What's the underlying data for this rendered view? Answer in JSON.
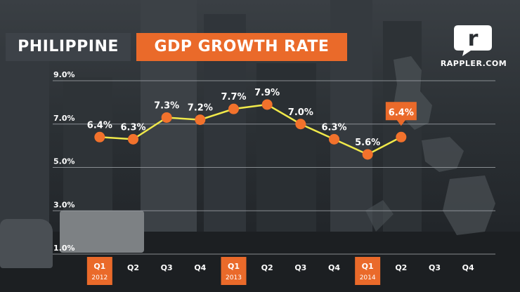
{
  "header": {
    "title_left": "PHILIPPINE",
    "title_right": "GDP GROWTH RATE",
    "brand_name": "RAPPLER.COM"
  },
  "colors": {
    "accent": "#ea6a2a",
    "line": "#f0e94a",
    "marker": "#f2722c",
    "grid": "#9a9ea3"
  },
  "icons": {
    "brand_logo": "rappler-logo-icon"
  },
  "chart_data": {
    "type": "line",
    "title": "PHILIPPINE GDP GROWTH RATE",
    "categories": [
      "Q1",
      "Q2",
      "Q3",
      "Q4",
      "Q1",
      "Q2",
      "Q3",
      "Q4",
      "Q1",
      "Q2",
      "Q3",
      "Q4"
    ],
    "year_labels": [
      "2012",
      "",
      "",
      "",
      "2013",
      "",
      "",
      "",
      "2014",
      "",
      "",
      ""
    ],
    "highlighted_categories": [
      0,
      4,
      8
    ],
    "series": [
      {
        "values": [
          6.4,
          6.3,
          7.3,
          7.2,
          7.7,
          7.9,
          7.0,
          6.3,
          5.6,
          6.4,
          null,
          null
        ]
      }
    ],
    "data_labels": [
      "6.4%",
      "6.3%",
      "7.3%",
      "7.2%",
      "7.7%",
      "7.9%",
      "7.0%",
      "6.3%",
      "5.6%",
      "6.4%",
      "",
      ""
    ],
    "highlighted_point": 9,
    "yticks": [
      1.0,
      3.0,
      5.0,
      7.0,
      9.0
    ],
    "ytick_labels": [
      "1.0%",
      "3.0%",
      "5.0%",
      "7.0%",
      "9.0%"
    ],
    "ylim": [
      1.0,
      9.0
    ],
    "grid": true
  }
}
